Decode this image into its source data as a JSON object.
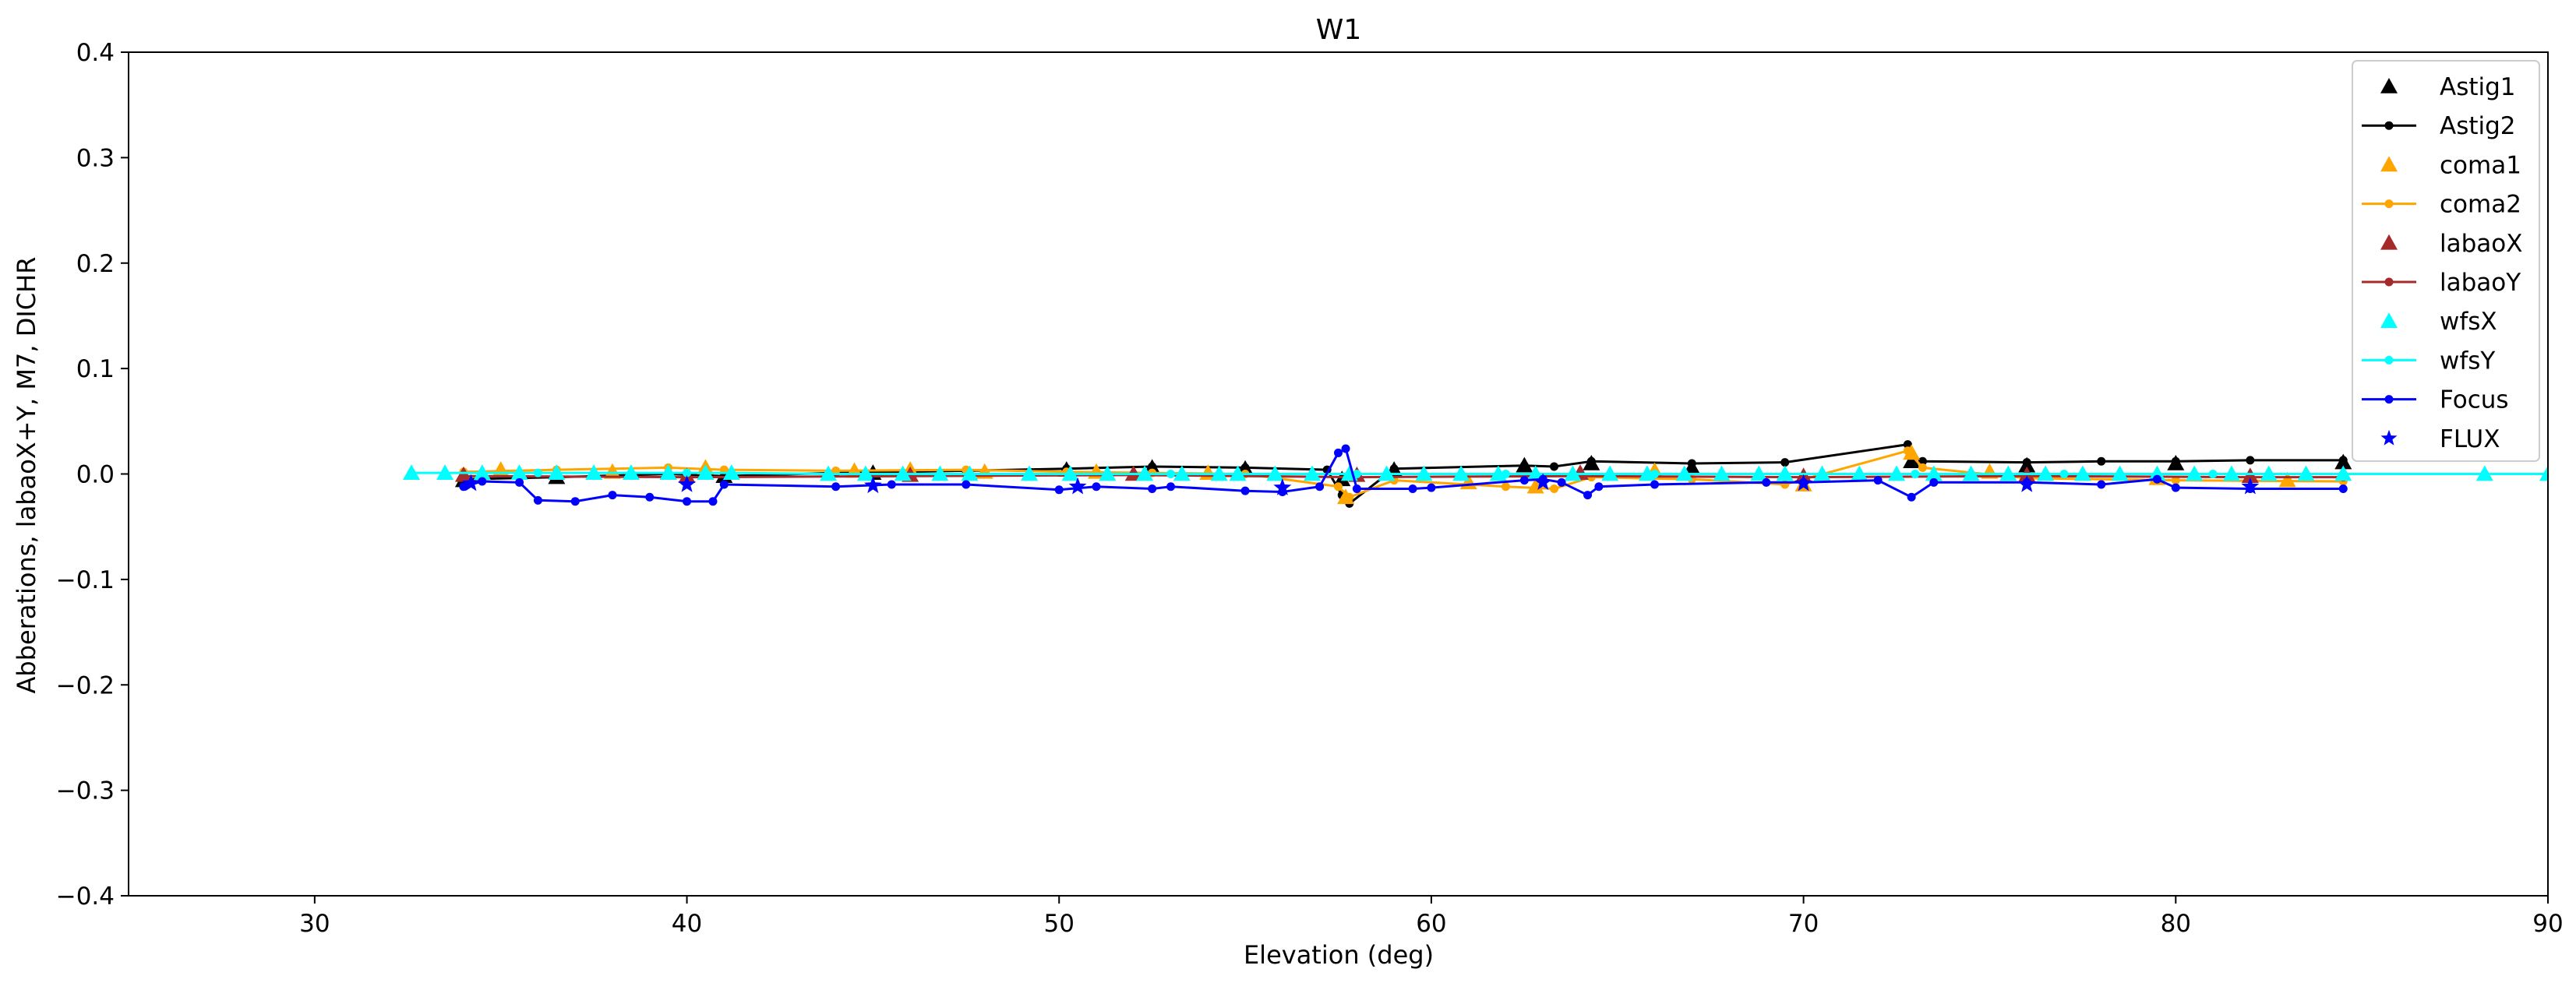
{
  "chart_data": {
    "type": "scatter",
    "title": "W1",
    "xlabel": "Elevation (deg)",
    "ylabel": "Abberations, labaoX+Y, M7, DICHR",
    "xlim": [
      25,
      90
    ],
    "ylim": [
      -0.4,
      0.4
    ],
    "xticks": [
      30,
      40,
      50,
      60,
      70,
      80,
      90
    ],
    "xtick_labels": [
      "30",
      "40",
      "50",
      "60",
      "70",
      "80",
      "90"
    ],
    "yticks": [
      0.4,
      0.3,
      0.2,
      0.1,
      0.0,
      -0.1,
      -0.2,
      -0.3,
      -0.4
    ],
    "ytick_labels": [
      "0.4",
      "0.3",
      "0.2",
      "0.1",
      "0.0",
      "−0.1",
      "−0.2",
      "−0.3",
      "−0.4"
    ],
    "grid": false,
    "legend_position": "top-right",
    "series": [
      {
        "name": "Astig1",
        "color": "#000000",
        "marker": "triangle",
        "line": false,
        "x": [
          34.0,
          36.5,
          39.5,
          41.0,
          45.0,
          50.2,
          52.5,
          55.0,
          57.6,
          59.0,
          62.5,
          64.3,
          67.0,
          72.9,
          76.0,
          80.0,
          84.5
        ],
        "y": [
          -0.006,
          -0.003,
          0.001,
          -0.002,
          0.001,
          0.004,
          0.006,
          0.005,
          -0.005,
          0.004,
          0.008,
          0.01,
          0.006,
          0.012,
          0.008,
          0.01,
          0.011
        ]
      },
      {
        "name": "Astig2",
        "color": "#000000",
        "marker": "dot",
        "line": true,
        "x": [
          34.0,
          36.5,
          39.5,
          41.0,
          44.0,
          47.5,
          50.2,
          52.5,
          55.0,
          57.2,
          57.6,
          57.8,
          59.0,
          62.5,
          63.3,
          64.3,
          67.0,
          69.5,
          72.8,
          72.9,
          73.2,
          76.0,
          78.0,
          80.0,
          82.0,
          84.5
        ],
        "y": [
          -0.005,
          -0.003,
          0.0,
          -0.002,
          0.001,
          0.003,
          0.005,
          0.007,
          0.006,
          0.004,
          -0.02,
          -0.028,
          0.005,
          0.008,
          0.007,
          0.012,
          0.01,
          0.011,
          0.028,
          0.018,
          0.012,
          0.011,
          0.012,
          0.012,
          0.013,
          0.013
        ]
      },
      {
        "name": "coma1",
        "color": "#ffa500",
        "marker": "triangle",
        "line": false,
        "x": [
          35.0,
          38.0,
          40.5,
          44.5,
          46.0,
          48.0,
          51.0,
          54.0,
          57.7,
          61.0,
          62.8,
          66.0,
          70.0,
          72.9,
          75.0,
          79.5,
          83.0
        ],
        "y": [
          0.004,
          0.002,
          0.006,
          0.003,
          0.004,
          0.002,
          0.002,
          0.001,
          -0.022,
          -0.008,
          -0.012,
          0.003,
          -0.01,
          0.02,
          0.002,
          -0.004,
          -0.006
        ]
      },
      {
        "name": "coma2",
        "color": "#ffa500",
        "marker": "dot",
        "line": true,
        "x": [
          34.0,
          36.5,
          39.5,
          41.0,
          44.0,
          47.5,
          50.2,
          52.5,
          55.0,
          57.5,
          57.8,
          59.0,
          62.0,
          63.3,
          64.3,
          67.0,
          69.5,
          72.8,
          73.2,
          76.0,
          80.0,
          84.5
        ],
        "y": [
          0.002,
          0.004,
          0.006,
          0.004,
          0.003,
          0.004,
          0.002,
          0.001,
          0.0,
          -0.012,
          -0.022,
          -0.006,
          -0.012,
          -0.014,
          -0.003,
          -0.005,
          -0.01,
          0.022,
          0.006,
          -0.004,
          -0.006,
          -0.007
        ]
      },
      {
        "name": "labaoX",
        "color": "#a52a2a",
        "marker": "triangle",
        "line": false,
        "x": [
          34.0,
          40.0,
          46.0,
          52.0,
          58.0,
          64.0,
          70.0,
          76.0,
          82.0
        ],
        "y": [
          -0.001,
          -0.002,
          -0.001,
          0.0,
          -0.001,
          0.001,
          -0.002,
          -0.001,
          -0.002
        ]
      },
      {
        "name": "labaoY",
        "color": "#a52a2a",
        "marker": "dot",
        "line": true,
        "x": [
          34.0,
          40.0,
          46.0,
          52.0,
          58.0,
          64.0,
          70.0,
          76.0,
          82.0,
          84.5
        ],
        "y": [
          -0.002,
          -0.003,
          -0.002,
          -0.001,
          -0.003,
          -0.002,
          -0.003,
          -0.002,
          -0.003,
          -0.003
        ]
      },
      {
        "name": "wfsX",
        "color": "#00ffff",
        "marker": "triangle",
        "line": false,
        "x": [
          32.6,
          33.5,
          34.5,
          35.5,
          36.5,
          37.5,
          38.5,
          39.5,
          40.5,
          41.2,
          43.8,
          44.8,
          45.8,
          46.8,
          47.6,
          49.2,
          50.3,
          51.3,
          52.3,
          53.3,
          54.3,
          54.8,
          55.8,
          56.8,
          57.8,
          58.8,
          59.8,
          60.8,
          61.8,
          62.8,
          63.8,
          64.8,
          65.8,
          66.8,
          67.8,
          68.8,
          69.5,
          70.5,
          71.5,
          72.5,
          73.5,
          74.5,
          75.5,
          76.5,
          77.5,
          78.5,
          79.5,
          80.5,
          81.5,
          82.5,
          83.5,
          84.5,
          88.3,
          90.0
        ],
        "y": [
          0.001,
          0.001,
          0.001,
          0.001,
          0.001,
          0.001,
          0.001,
          0.001,
          0.001,
          0.001,
          0.0,
          0.0,
          0.0,
          0.0,
          0.0,
          0.0,
          0.0,
          0.0,
          0.0,
          0.0,
          0.0,
          0.0,
          0.0,
          0.0,
          0.0,
          0.0,
          0.0,
          0.0,
          0.0,
          0.0,
          0.0,
          0.0,
          0.0,
          0.0,
          0.0,
          0.0,
          0.0,
          0.0,
          0.0,
          0.0,
          0.0,
          0.0,
          0.0,
          0.0,
          0.0,
          0.0,
          0.0,
          0.0,
          0.0,
          0.0,
          0.0,
          0.0,
          0.0,
          0.0
        ]
      },
      {
        "name": "wfsY",
        "color": "#00ffff",
        "marker": "dot",
        "line": true,
        "x": [
          32.6,
          36.0,
          40.0,
          41.2,
          43.8,
          47.6,
          49.2,
          53.0,
          54.8,
          58.0,
          62.0,
          66.0,
          69.5,
          73.0,
          77.0,
          81.0,
          84.5,
          88.3,
          90.0
        ],
        "y": [
          0.001,
          0.001,
          0.001,
          0.001,
          0.0,
          0.0,
          0.0,
          0.0,
          0.0,
          0.0,
          0.0,
          0.0,
          0.0,
          0.0,
          0.0,
          0.0,
          0.0,
          0.0,
          0.0
        ]
      },
      {
        "name": "Focus",
        "color": "#0000ff",
        "marker": "dot",
        "line": true,
        "x": [
          34.0,
          34.5,
          35.5,
          36.0,
          37.0,
          38.0,
          39.0,
          40.0,
          40.7,
          41.0,
          44.0,
          45.5,
          47.5,
          50.0,
          51.0,
          52.5,
          53.0,
          55.0,
          56.0,
          57.0,
          57.5,
          57.7,
          58.0,
          59.5,
          60.0,
          62.5,
          63.0,
          63.5,
          64.2,
          64.5,
          66.0,
          69.0,
          70.0,
          72.0,
          72.9,
          73.5,
          76.0,
          78.0,
          79.5,
          80.0,
          82.0,
          84.5
        ],
        "y": [
          -0.012,
          -0.007,
          -0.008,
          -0.025,
          -0.026,
          -0.02,
          -0.022,
          -0.026,
          -0.026,
          -0.01,
          -0.012,
          -0.01,
          -0.01,
          -0.015,
          -0.012,
          -0.014,
          -0.012,
          -0.016,
          -0.017,
          -0.012,
          0.02,
          0.024,
          -0.014,
          -0.014,
          -0.013,
          -0.006,
          -0.005,
          -0.008,
          -0.02,
          -0.012,
          -0.01,
          -0.008,
          -0.008,
          -0.006,
          -0.022,
          -0.008,
          -0.008,
          -0.01,
          -0.005,
          -0.013,
          -0.014,
          -0.014
        ]
      },
      {
        "name": "FLUX",
        "color": "#0000ff",
        "marker": "star",
        "line": false,
        "x": [
          34.2,
          40.0,
          45.0,
          50.5,
          56.0,
          63.0,
          70.0,
          76.0,
          82.0
        ],
        "y": [
          -0.009,
          -0.01,
          -0.011,
          -0.012,
          -0.013,
          -0.008,
          -0.009,
          -0.01,
          -0.012
        ]
      }
    ]
  }
}
